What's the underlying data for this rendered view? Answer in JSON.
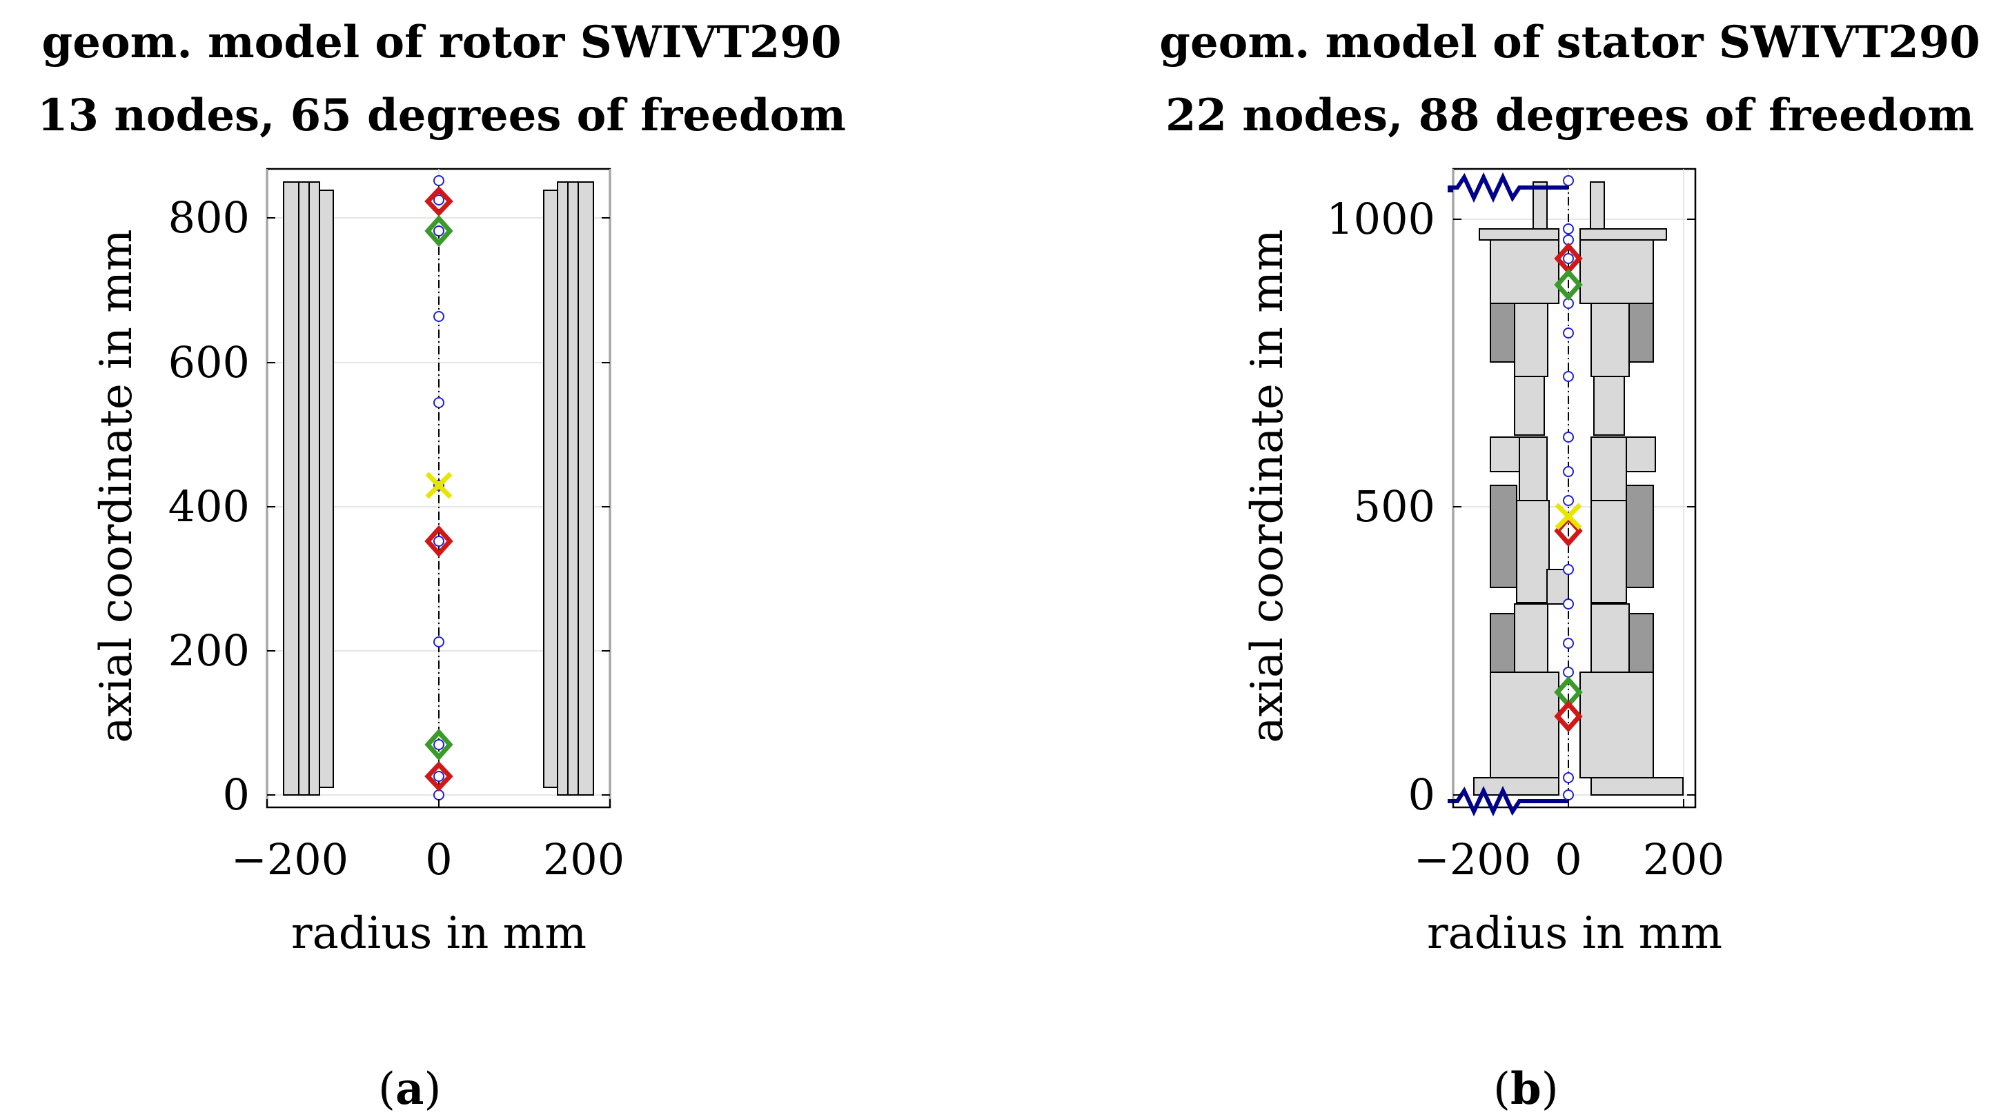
{
  "panel_a": {
    "title_line1": "geom. model of rotor SWIVT290",
    "title_line2": "13 nodes,   65 degrees of freedom",
    "caption_letter": "a",
    "x_label": "radius in mm",
    "y_label": "axial coordinate in mm",
    "x_ticks": [
      "−200",
      "0",
      "200"
    ],
    "y_ticks": [
      "0",
      "200",
      "400",
      "600",
      "800"
    ]
  },
  "panel_b": {
    "title_line1": "geom. model of stator SWIVT290",
    "title_line2": "22 nodes,   88 degrees of freedom",
    "caption_letter": "b",
    "x_label": "radius in mm",
    "y_label": "axial coordinate in mm",
    "x_ticks": [
      "−200",
      "0",
      "200"
    ],
    "y_ticks": [
      "0",
      "500",
      "1000"
    ]
  },
  "colors": {
    "node": "#1f1fd6",
    "red_marker": "#d01818",
    "green_marker": "#3a9a2a",
    "yellow_marker": "#e6e600",
    "spring": "#00008b",
    "fill_light": "#d9d9d9",
    "fill_dark": "#999999"
  }
}
